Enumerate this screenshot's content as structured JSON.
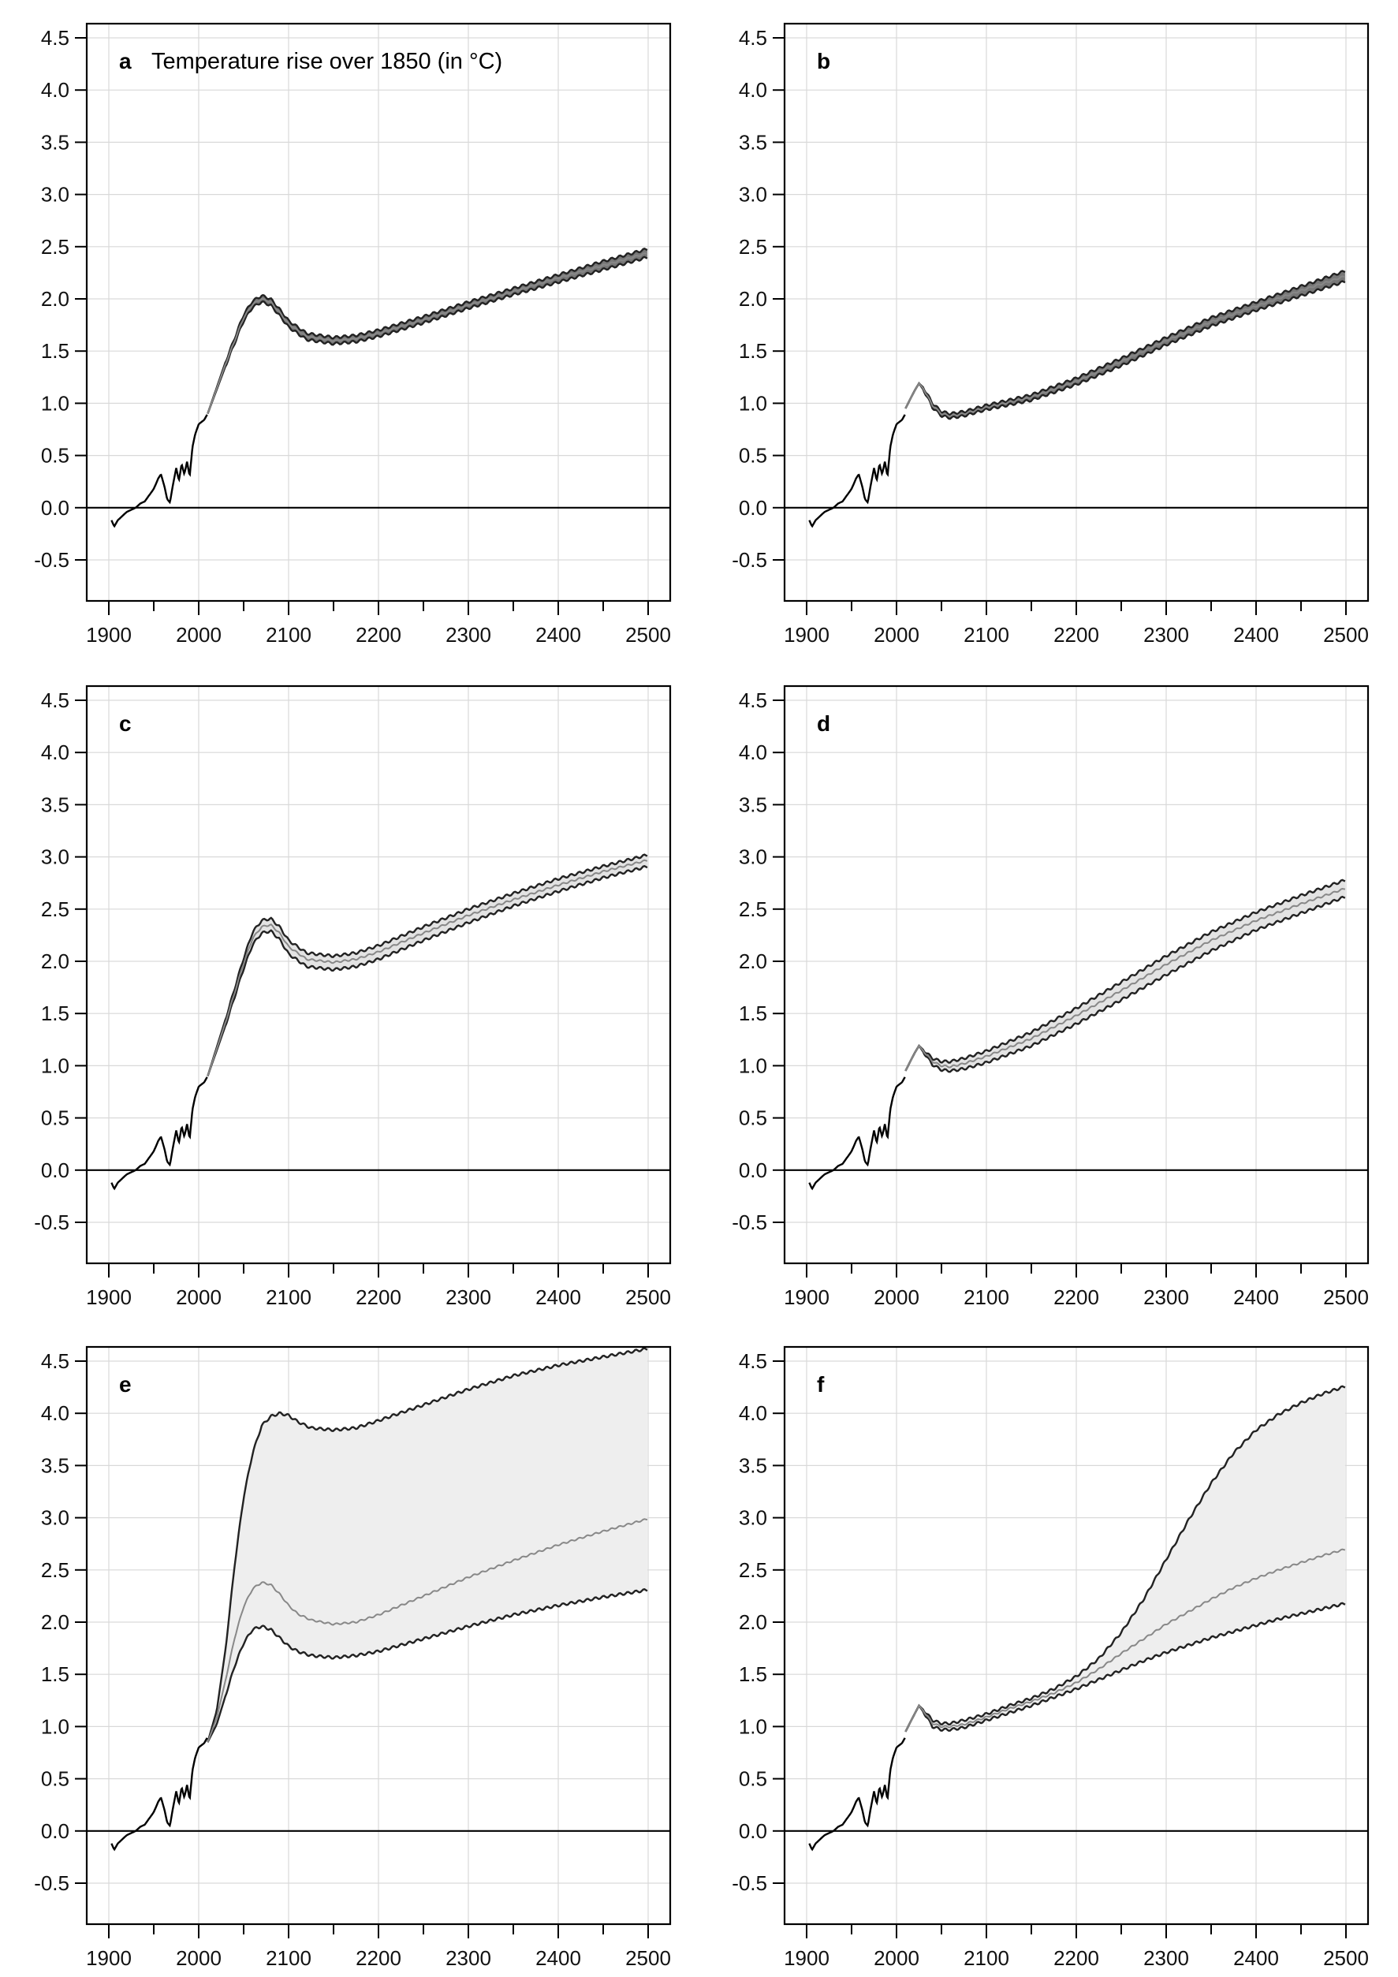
{
  "chart_data": [
    {
      "id": "a",
      "type": "line",
      "letter": "a",
      "title": "Temperature rise over 1850 (in °C)",
      "xlim": [
        1900,
        2500
      ],
      "ylim": [
        -0.5,
        4.5
      ],
      "xticks": [
        1900,
        2000,
        2100,
        2200,
        2300,
        2400,
        2500
      ],
      "yticks": [
        -0.5,
        0.0,
        0.5,
        1.0,
        1.5,
        2.0,
        2.5,
        3.0,
        3.5,
        4.0,
        4.5
      ],
      "ytick_labels": [
        "-0.5",
        "0.0",
        "0.5",
        "1.0",
        "1.5",
        "2.0",
        "2.5",
        "3.0",
        "3.5",
        "4.0",
        "4.5"
      ],
      "grid": true,
      "band_fill": "#777777",
      "series": [
        {
          "role": "upper",
          "x": [
            2010,
            2030,
            2050,
            2060,
            2070,
            2080,
            2090,
            2100,
            2120,
            2150,
            2175,
            2200,
            2250,
            2300,
            2350,
            2400,
            2450,
            2500
          ],
          "y": [
            0.9,
            1.4,
            1.85,
            1.98,
            2.03,
            2.0,
            1.9,
            1.79,
            1.67,
            1.63,
            1.65,
            1.7,
            1.83,
            1.97,
            2.1,
            2.23,
            2.36,
            2.48
          ]
        },
        {
          "role": "median",
          "x": [
            2010,
            2030,
            2050,
            2060,
            2070,
            2080,
            2090,
            2100,
            2120,
            2150,
            2175,
            2200,
            2250,
            2300,
            2350,
            2400,
            2450,
            2500
          ],
          "y": [
            0.9,
            1.38,
            1.82,
            1.95,
            2.0,
            1.97,
            1.87,
            1.76,
            1.64,
            1.6,
            1.62,
            1.67,
            1.8,
            1.94,
            2.07,
            2.2,
            2.32,
            2.44
          ]
        },
        {
          "role": "lower",
          "x": [
            2010,
            2030,
            2050,
            2060,
            2070,
            2080,
            2090,
            2100,
            2120,
            2150,
            2175,
            2200,
            2250,
            2300,
            2350,
            2400,
            2450,
            2500
          ],
          "y": [
            0.9,
            1.36,
            1.79,
            1.92,
            1.97,
            1.94,
            1.84,
            1.73,
            1.61,
            1.57,
            1.59,
            1.64,
            1.77,
            1.91,
            2.04,
            2.16,
            2.28,
            2.4
          ]
        }
      ]
    },
    {
      "id": "b",
      "type": "line",
      "letter": "b",
      "title": "",
      "xlim": [
        1900,
        2500
      ],
      "ylim": [
        -0.5,
        4.5
      ],
      "xticks": [
        1900,
        2000,
        2100,
        2200,
        2300,
        2400,
        2500
      ],
      "yticks": [
        -0.5,
        0.0,
        0.5,
        1.0,
        1.5,
        2.0,
        2.5,
        3.0,
        3.5,
        4.0,
        4.5
      ],
      "ytick_labels": [
        "-0.5",
        "0.0",
        "0.5",
        "1.0",
        "1.5",
        "2.0",
        "2.5",
        "3.0",
        "3.5",
        "4.0",
        "4.5"
      ],
      "grid": true,
      "band_fill": "#777777",
      "series": [
        {
          "role": "upper",
          "x": [
            2010,
            2020,
            2025,
            2030,
            2040,
            2050,
            2060,
            2075,
            2100,
            2150,
            2200,
            2250,
            2300,
            2350,
            2400,
            2450,
            2500
          ],
          "y": [
            0.95,
            1.12,
            1.19,
            1.15,
            1.0,
            0.92,
            0.9,
            0.92,
            0.98,
            1.08,
            1.24,
            1.43,
            1.63,
            1.82,
            1.97,
            2.12,
            2.27
          ]
        },
        {
          "role": "median",
          "x": [
            2010,
            2020,
            2025,
            2030,
            2040,
            2050,
            2060,
            2075,
            2100,
            2150,
            2200,
            2250,
            2300,
            2350,
            2400,
            2450,
            2500
          ],
          "y": [
            0.95,
            1.12,
            1.19,
            1.14,
            0.98,
            0.9,
            0.88,
            0.9,
            0.96,
            1.06,
            1.21,
            1.4,
            1.6,
            1.78,
            1.93,
            2.08,
            2.22
          ]
        },
        {
          "role": "lower",
          "x": [
            2010,
            2020,
            2025,
            2030,
            2040,
            2050,
            2060,
            2075,
            2100,
            2150,
            2200,
            2250,
            2300,
            2350,
            2400,
            2450,
            2500
          ],
          "y": [
            0.95,
            1.12,
            1.19,
            1.13,
            0.96,
            0.88,
            0.86,
            0.88,
            0.94,
            1.03,
            1.18,
            1.36,
            1.56,
            1.74,
            1.89,
            2.03,
            2.17
          ]
        }
      ]
    },
    {
      "id": "c",
      "type": "line",
      "letter": "c",
      "title": "",
      "xlim": [
        1900,
        2500
      ],
      "ylim": [
        -0.5,
        4.5
      ],
      "xticks": [
        1900,
        2000,
        2100,
        2200,
        2300,
        2400,
        2500
      ],
      "yticks": [
        -0.5,
        0.0,
        0.5,
        1.0,
        1.5,
        2.0,
        2.5,
        3.0,
        3.5,
        4.0,
        4.5
      ],
      "ytick_labels": [
        "-0.5",
        "0.0",
        "0.5",
        "1.0",
        "1.5",
        "2.0",
        "2.5",
        "3.0",
        "3.5",
        "4.0",
        "4.5"
      ],
      "grid": true,
      "band_fill": "#e3e3e3",
      "series": [
        {
          "role": "upper",
          "x": [
            2010,
            2030,
            2050,
            2060,
            2070,
            2080,
            2090,
            2100,
            2120,
            2150,
            2175,
            2200,
            2250,
            2300,
            2350,
            2400,
            2450,
            2500
          ],
          "y": [
            0.9,
            1.45,
            2.03,
            2.28,
            2.39,
            2.41,
            2.33,
            2.2,
            2.08,
            2.05,
            2.08,
            2.15,
            2.33,
            2.5,
            2.65,
            2.79,
            2.91,
            3.02
          ]
        },
        {
          "role": "median",
          "x": [
            2010,
            2030,
            2050,
            2060,
            2070,
            2080,
            2090,
            2100,
            2120,
            2150,
            2175,
            2200,
            2250,
            2300,
            2350,
            2400,
            2450,
            2500
          ],
          "y": [
            0.9,
            1.42,
            1.98,
            2.22,
            2.33,
            2.35,
            2.27,
            2.14,
            2.02,
            1.99,
            2.02,
            2.09,
            2.27,
            2.44,
            2.59,
            2.73,
            2.86,
            2.97
          ]
        },
        {
          "role": "lower",
          "x": [
            2010,
            2030,
            2050,
            2060,
            2070,
            2080,
            2090,
            2100,
            2120,
            2150,
            2175,
            2200,
            2250,
            2300,
            2350,
            2400,
            2450,
            2500
          ],
          "y": [
            0.9,
            1.39,
            1.93,
            2.16,
            2.27,
            2.29,
            2.21,
            2.07,
            1.95,
            1.92,
            1.95,
            2.02,
            2.2,
            2.37,
            2.53,
            2.67,
            2.8,
            2.91
          ]
        }
      ]
    },
    {
      "id": "d",
      "type": "line",
      "letter": "d",
      "title": "",
      "xlim": [
        1900,
        2500
      ],
      "ylim": [
        -0.5,
        4.5
      ],
      "xticks": [
        1900,
        2000,
        2100,
        2200,
        2300,
        2400,
        2500
      ],
      "yticks": [
        -0.5,
        0.0,
        0.5,
        1.0,
        1.5,
        2.0,
        2.5,
        3.0,
        3.5,
        4.0,
        4.5
      ],
      "ytick_labels": [
        "-0.5",
        "0.0",
        "0.5",
        "1.0",
        "1.5",
        "2.0",
        "2.5",
        "3.0",
        "3.5",
        "4.0",
        "4.5"
      ],
      "grid": true,
      "band_fill": "#e3e3e3",
      "series": [
        {
          "role": "upper",
          "x": [
            2010,
            2020,
            2025,
            2030,
            2040,
            2050,
            2060,
            2075,
            2100,
            2150,
            2200,
            2250,
            2300,
            2350,
            2400,
            2450,
            2500
          ],
          "y": [
            0.95,
            1.12,
            1.19,
            1.15,
            1.07,
            1.04,
            1.04,
            1.07,
            1.14,
            1.32,
            1.55,
            1.8,
            2.05,
            2.28,
            2.47,
            2.63,
            2.78
          ]
        },
        {
          "role": "median",
          "x": [
            2010,
            2020,
            2025,
            2030,
            2040,
            2050,
            2060,
            2075,
            2100,
            2150,
            2200,
            2250,
            2300,
            2350,
            2400,
            2450,
            2500
          ],
          "y": [
            0.95,
            1.12,
            1.19,
            1.14,
            1.04,
            1.0,
            0.99,
            1.02,
            1.09,
            1.26,
            1.48,
            1.72,
            1.97,
            2.2,
            2.39,
            2.55,
            2.7
          ]
        },
        {
          "role": "lower",
          "x": [
            2010,
            2020,
            2025,
            2030,
            2040,
            2050,
            2060,
            2075,
            2100,
            2150,
            2200,
            2250,
            2300,
            2350,
            2400,
            2450,
            2500
          ],
          "y": [
            0.95,
            1.12,
            1.19,
            1.13,
            1.01,
            0.96,
            0.95,
            0.97,
            1.03,
            1.19,
            1.4,
            1.63,
            1.87,
            2.1,
            2.3,
            2.46,
            2.62
          ]
        }
      ]
    },
    {
      "id": "e",
      "type": "line",
      "letter": "e",
      "title": "",
      "xlim": [
        1900,
        2500
      ],
      "ylim": [
        -0.5,
        4.5
      ],
      "xticks": [
        1900,
        2000,
        2100,
        2200,
        2300,
        2400,
        2500
      ],
      "yticks": [
        -0.5,
        0.0,
        0.5,
        1.0,
        1.5,
        2.0,
        2.5,
        3.0,
        3.5,
        4.0,
        4.5
      ],
      "ytick_labels": [
        "-0.5",
        "0.0",
        "0.5",
        "1.0",
        "1.5",
        "2.0",
        "2.5",
        "3.0",
        "3.5",
        "4.0",
        "4.5"
      ],
      "grid": true,
      "band_fill": "#eeeeee",
      "series": [
        {
          "role": "upper",
          "x": [
            2010,
            2020,
            2030,
            2040,
            2050,
            2060,
            2070,
            2080,
            2090,
            2100,
            2110,
            2125,
            2150,
            2175,
            2200,
            2250,
            2300,
            2350,
            2400,
            2450,
            2500
          ],
          "y": [
            0.85,
            1.15,
            1.75,
            2.55,
            3.2,
            3.62,
            3.88,
            3.97,
            4.0,
            3.98,
            3.92,
            3.86,
            3.84,
            3.86,
            3.93,
            4.08,
            4.23,
            4.36,
            4.46,
            4.54,
            4.62
          ]
        },
        {
          "role": "median",
          "x": [
            2010,
            2020,
            2030,
            2040,
            2050,
            2060,
            2070,
            2080,
            2090,
            2100,
            2110,
            2125,
            2150,
            2175,
            2200,
            2250,
            2300,
            2350,
            2400,
            2450,
            2500
          ],
          "y": [
            0.85,
            1.08,
            1.45,
            1.85,
            2.15,
            2.32,
            2.38,
            2.36,
            2.27,
            2.16,
            2.08,
            2.02,
            1.98,
            2.0,
            2.07,
            2.25,
            2.43,
            2.59,
            2.74,
            2.87,
            2.99
          ]
        },
        {
          "role": "lower",
          "x": [
            2010,
            2020,
            2030,
            2040,
            2050,
            2060,
            2070,
            2080,
            2090,
            2100,
            2110,
            2125,
            2150,
            2175,
            2200,
            2250,
            2300,
            2350,
            2400,
            2450,
            2500
          ],
          "y": [
            0.85,
            1.02,
            1.3,
            1.58,
            1.8,
            1.93,
            1.96,
            1.93,
            1.85,
            1.77,
            1.72,
            1.68,
            1.66,
            1.68,
            1.72,
            1.84,
            1.96,
            2.07,
            2.16,
            2.24,
            2.31
          ]
        }
      ]
    },
    {
      "id": "f",
      "type": "line",
      "letter": "f",
      "title": "",
      "xlim": [
        1900,
        2500
      ],
      "ylim": [
        -0.5,
        4.5
      ],
      "xticks": [
        1900,
        2000,
        2100,
        2200,
        2300,
        2400,
        2500
      ],
      "yticks": [
        -0.5,
        0.0,
        0.5,
        1.0,
        1.5,
        2.0,
        2.5,
        3.0,
        3.5,
        4.0,
        4.5
      ],
      "ytick_labels": [
        "-0.5",
        "0.0",
        "0.5",
        "1.0",
        "1.5",
        "2.0",
        "2.5",
        "3.0",
        "3.5",
        "4.0",
        "4.5"
      ],
      "grid": true,
      "band_fill": "#eeeeee",
      "series": [
        {
          "role": "upper",
          "x": [
            2010,
            2020,
            2025,
            2030,
            2040,
            2050,
            2060,
            2075,
            2100,
            2125,
            2150,
            2175,
            2200,
            2225,
            2250,
            2275,
            2300,
            2325,
            2350,
            2375,
            2400,
            2425,
            2450,
            2475,
            2500
          ],
          "y": [
            0.95,
            1.12,
            1.2,
            1.16,
            1.06,
            1.03,
            1.03,
            1.06,
            1.12,
            1.2,
            1.27,
            1.36,
            1.48,
            1.65,
            1.9,
            2.22,
            2.6,
            2.98,
            3.33,
            3.62,
            3.84,
            3.99,
            4.1,
            4.19,
            4.26
          ]
        },
        {
          "role": "median",
          "x": [
            2010,
            2020,
            2025,
            2030,
            2040,
            2050,
            2060,
            2075,
            2100,
            2125,
            2150,
            2175,
            2200,
            2225,
            2250,
            2275,
            2300,
            2325,
            2350,
            2375,
            2400,
            2425,
            2450,
            2475,
            2500
          ],
          "y": [
            0.95,
            1.12,
            1.2,
            1.15,
            1.03,
            1.0,
            1.0,
            1.02,
            1.09,
            1.17,
            1.24,
            1.32,
            1.42,
            1.55,
            1.7,
            1.84,
            1.98,
            2.1,
            2.22,
            2.33,
            2.42,
            2.5,
            2.57,
            2.64,
            2.7
          ]
        },
        {
          "role": "lower",
          "x": [
            2010,
            2020,
            2025,
            2030,
            2040,
            2050,
            2060,
            2075,
            2100,
            2125,
            2150,
            2175,
            2200,
            2225,
            2250,
            2275,
            2300,
            2325,
            2350,
            2375,
            2400,
            2425,
            2450,
            2475,
            2500
          ],
          "y": [
            0.95,
            1.12,
            1.2,
            1.14,
            1.0,
            0.97,
            0.97,
            0.99,
            1.06,
            1.13,
            1.2,
            1.28,
            1.36,
            1.45,
            1.54,
            1.63,
            1.71,
            1.78,
            1.85,
            1.91,
            1.97,
            2.03,
            2.08,
            2.13,
            2.18
          ]
        }
      ]
    }
  ],
  "historical": {
    "x": [
      1903,
      1906,
      1910,
      1915,
      1920,
      1925,
      1930,
      1935,
      1940,
      1945,
      1950,
      1955,
      1958,
      1962,
      1965,
      1968,
      1972,
      1975,
      1978,
      1981,
      1984,
      1987,
      1990,
      1993,
      1996,
      2000,
      2003,
      2006,
      2010
    ],
    "y": [
      -0.12,
      -0.18,
      -0.12,
      -0.08,
      -0.04,
      -0.02,
      0.0,
      0.04,
      0.06,
      0.12,
      0.18,
      0.28,
      0.32,
      0.2,
      0.08,
      0.05,
      0.25,
      0.38,
      0.26,
      0.42,
      0.32,
      0.44,
      0.3,
      0.58,
      0.7,
      0.8,
      0.82,
      0.84,
      0.9
    ]
  },
  "colors": {
    "line_dark": "#222222",
    "line_mid": "#555555",
    "line_light": "#888888"
  }
}
